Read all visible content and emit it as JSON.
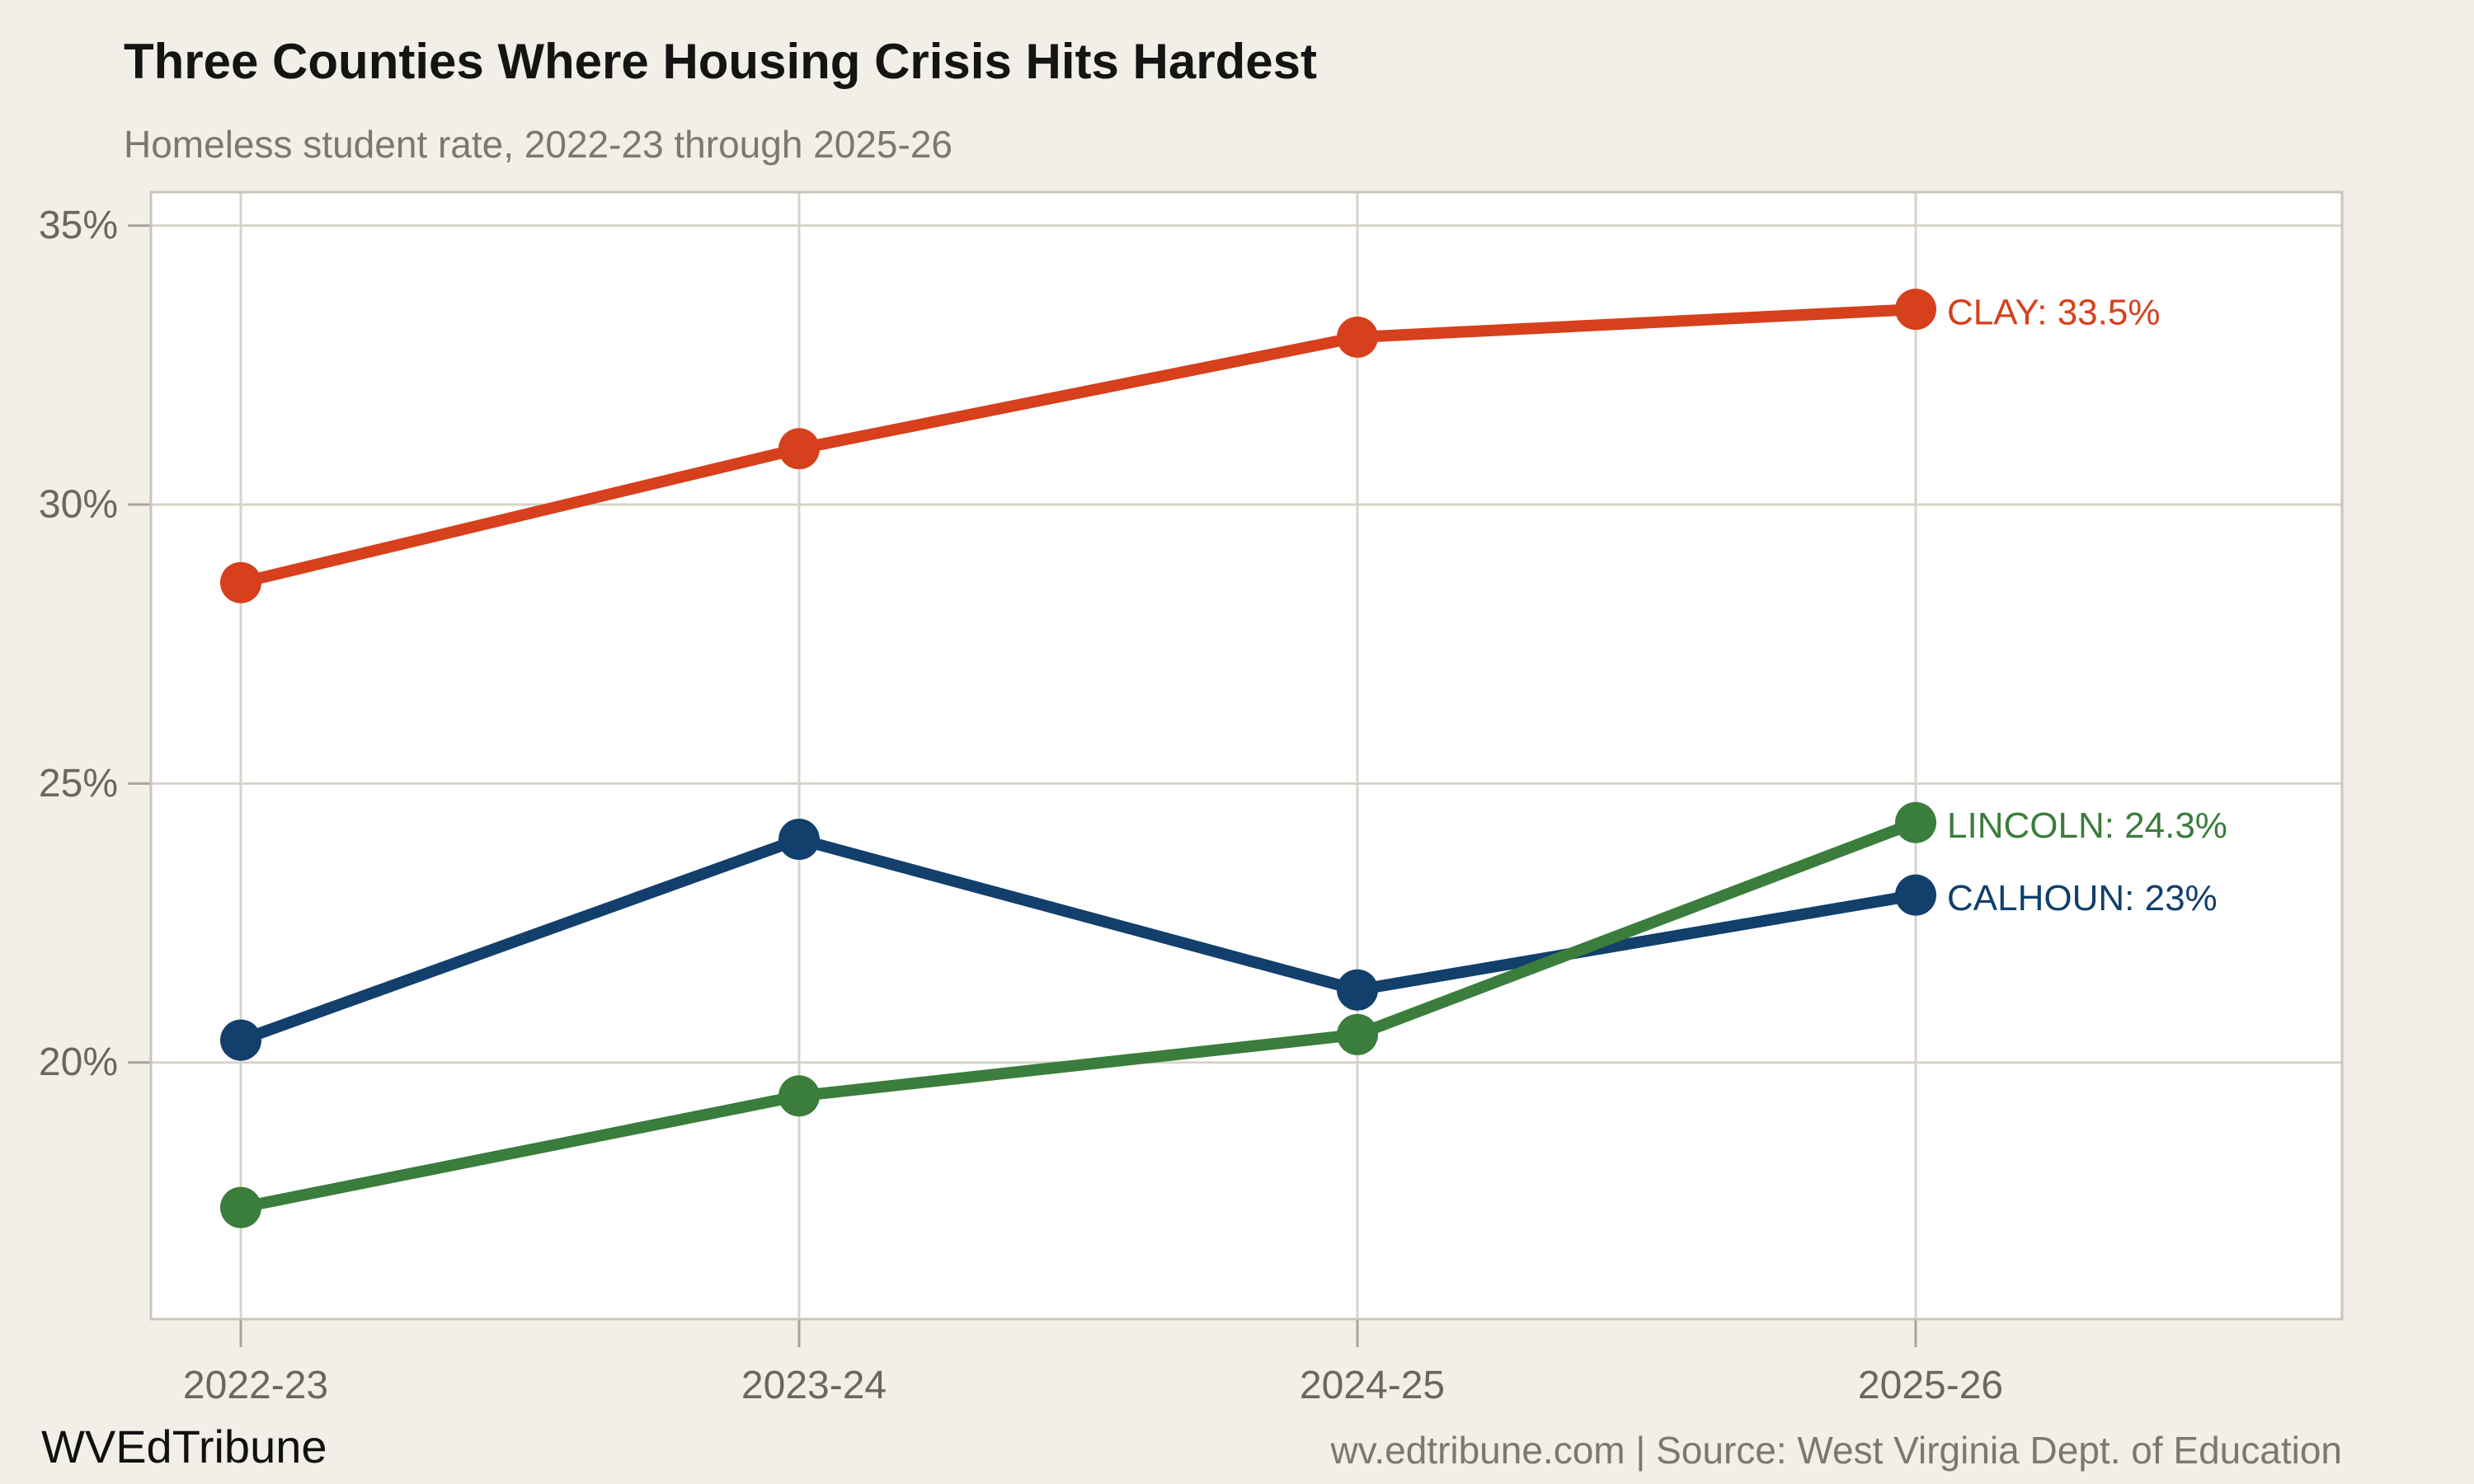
{
  "header": {
    "title": "Three Counties Where Housing Crisis Hits Hardest",
    "subtitle": "Homeless student rate, 2022-23 through 2025-26"
  },
  "footer": {
    "brand": "WVEdTribune",
    "source": "wv.edtribune.com | Source: West Virginia Dept. of Education"
  },
  "colors": {
    "background": "#F2EFE8",
    "plot_background": "#FFFFFF",
    "grid": "#D8D3CA",
    "plot_border": "#C9C4BA",
    "tick": "#A9A49A",
    "tick_label": "#6B675E"
  },
  "chart_data": {
    "type": "line",
    "title": "Three Counties Where Housing Crisis Hits Hardest",
    "subtitle": "Homeless student rate, 2022-23 through 2025-26",
    "xlabel": "",
    "ylabel": "",
    "categories": [
      "2022-23",
      "2023-24",
      "2024-25",
      "2025-26"
    ],
    "series": [
      {
        "name": "CALHOUN",
        "color": "#123F6B",
        "values": [
          20.4,
          24.0,
          21.3,
          23.0
        ],
        "end_label": "CALHOUN: 23%"
      },
      {
        "name": "LINCOLN",
        "color": "#3A7D3C",
        "values": [
          17.4,
          19.4,
          20.5,
          24.3
        ],
        "end_label": "LINCOLN: 24.3%"
      },
      {
        "name": "CLAY",
        "color": "#D6401C",
        "values": [
          28.6,
          31.0,
          33.0,
          33.5
        ],
        "end_label": "CLAY: 33.5%"
      }
    ],
    "yticks": [
      20,
      25,
      30,
      35
    ],
    "ytick_labels": [
      "20%",
      "25%",
      "30%",
      "35%"
    ],
    "ylim": [
      15.4,
      35.6
    ],
    "grid": true,
    "legend_position": "end-of-line-labels"
  }
}
